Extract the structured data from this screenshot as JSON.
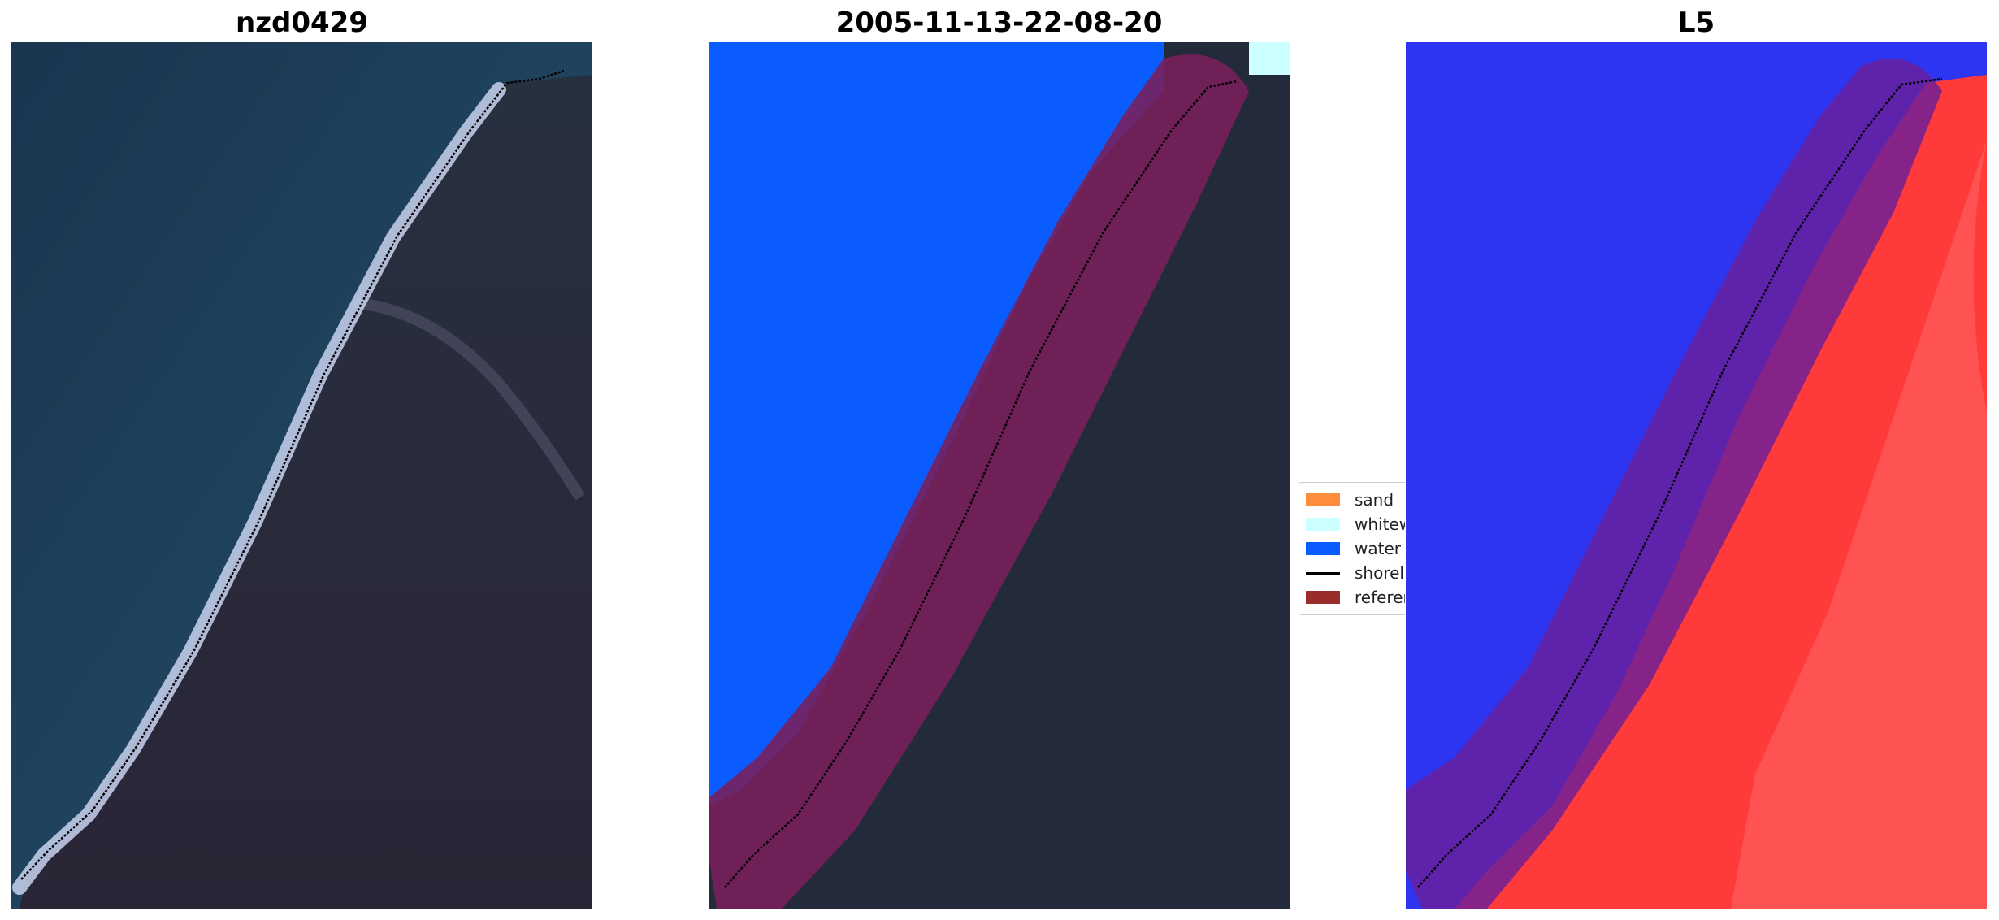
{
  "panels": [
    {
      "title": "nzd0429"
    },
    {
      "title": "2005-11-13-22-08-20"
    },
    {
      "title": "L5"
    }
  ],
  "legend": {
    "items": [
      {
        "label": "sand",
        "color": "#ff8c3a",
        "kind": "patch"
      },
      {
        "label": "whitewater",
        "color": "#ccffff",
        "kind": "patch"
      },
      {
        "label": "water",
        "color": "#0a5cff",
        "kind": "patch"
      },
      {
        "label": "shoreline",
        "color": "#000000",
        "kind": "line"
      },
      {
        "label": "reference shoreline buffer",
        "color": "#9b2c2c",
        "kind": "patch"
      }
    ]
  },
  "colors": {
    "sea": "#1d3d55",
    "land": "#232a3a",
    "surf": "#c8d2ee",
    "water_class": "#0a5cff",
    "buffer": "#7a1f3d",
    "index_blue": "#2e35f0",
    "index_red": "#ff2020"
  }
}
